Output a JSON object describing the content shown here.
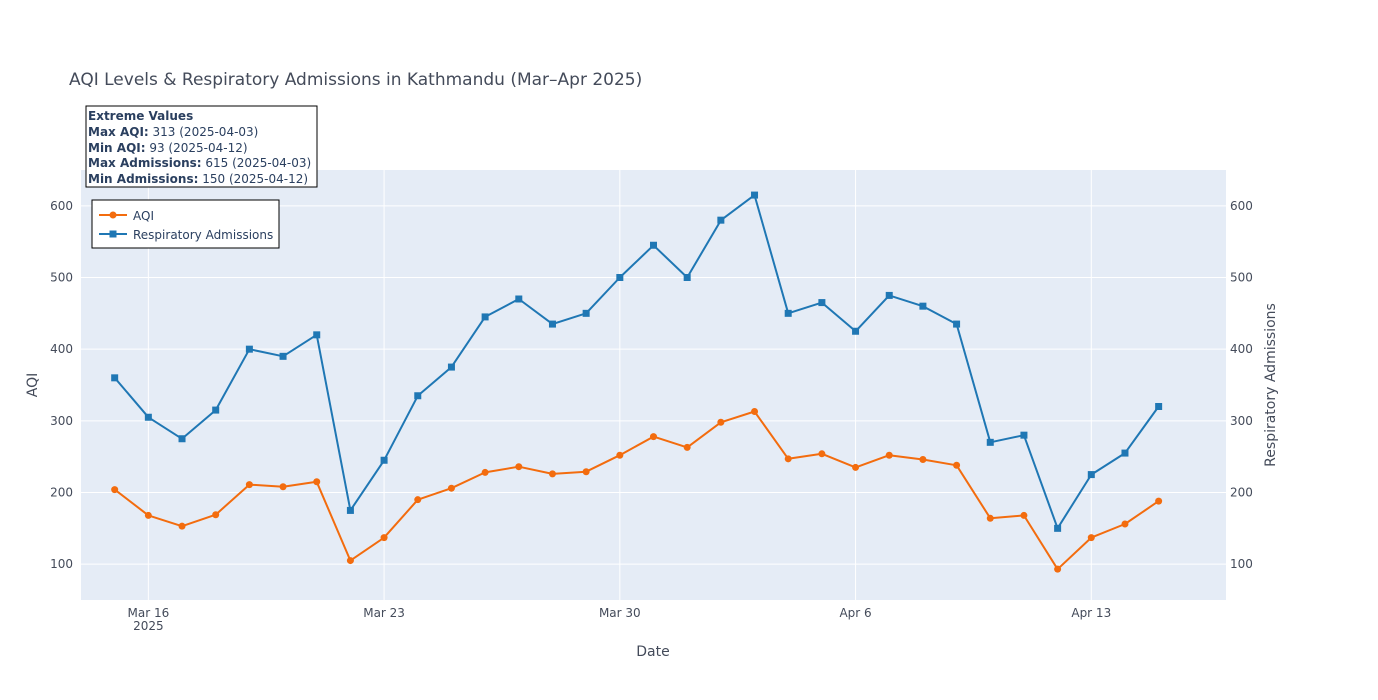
{
  "chart_data": {
    "type": "line",
    "title": "AQI Levels & Respiratory Admissions in Kathmandu (Mar–Apr 2025)",
    "xlabel": "Date",
    "ylabel": "AQI",
    "y2label": "Respiratory Admissions",
    "ylim": [
      50,
      650
    ],
    "y2lim": [
      50,
      650
    ],
    "yticks": [
      100,
      200,
      300,
      400,
      500,
      600
    ],
    "xrange": [
      "2025-03-14T00:00",
      "2025-04-17T00:00"
    ],
    "xticks": [
      {
        "date": "2025-03-16",
        "label": "Mar 16",
        "sublabel": "2025"
      },
      {
        "date": "2025-03-23",
        "label": "Mar 23",
        "sublabel": ""
      },
      {
        "date": "2025-03-30",
        "label": "Mar 30",
        "sublabel": ""
      },
      {
        "date": "2025-04-06",
        "label": "Apr 6",
        "sublabel": ""
      },
      {
        "date": "2025-04-13",
        "label": "Apr 13",
        "sublabel": ""
      }
    ],
    "grid": true,
    "legend_position": "top-left",
    "dates": [
      "2025-03-15",
      "2025-03-16",
      "2025-03-17",
      "2025-03-18",
      "2025-03-19",
      "2025-03-20",
      "2025-03-21",
      "2025-03-22",
      "2025-03-23",
      "2025-03-24",
      "2025-03-25",
      "2025-03-26",
      "2025-03-27",
      "2025-03-28",
      "2025-03-29",
      "2025-03-30",
      "2025-03-31",
      "2025-04-01",
      "2025-04-02",
      "2025-04-03",
      "2025-04-04",
      "2025-04-05",
      "2025-04-06",
      "2025-04-07",
      "2025-04-08",
      "2025-04-09",
      "2025-04-10",
      "2025-04-11",
      "2025-04-12",
      "2025-04-13",
      "2025-04-14",
      "2025-04-15"
    ],
    "series": [
      {
        "name": "AQI",
        "axis": "y",
        "color": "#f36c0e",
        "marker": "circle",
        "values": [
          204,
          168,
          153,
          169,
          211,
          208,
          215,
          105,
          137,
          190,
          206,
          228,
          236,
          226,
          229,
          252,
          278,
          263,
          298,
          313,
          247,
          254,
          235,
          252,
          246,
          238,
          164,
          168,
          93,
          137,
          156,
          188
        ]
      },
      {
        "name": "Respiratory Admissions",
        "axis": "y2",
        "color": "#1f77b4",
        "marker": "square",
        "values": [
          360,
          305,
          275,
          315,
          400,
          390,
          420,
          175,
          245,
          335,
          375,
          445,
          470,
          435,
          450,
          500,
          545,
          500,
          580,
          615,
          450,
          465,
          425,
          475,
          460,
          435,
          270,
          280,
          150,
          225,
          255,
          320
        ]
      }
    ],
    "annotation": {
      "heading": "Extreme Values",
      "lines": [
        {
          "label": "Max AQI:",
          "value": " 313 (2025-04-03)"
        },
        {
          "label": "Min AQI:",
          "value": " 93 (2025-04-12)"
        },
        {
          "label": "Max Admissions:",
          "value": " 615 (2025-04-03)"
        },
        {
          "label": "Min Admissions:",
          "value": " 150 (2025-04-12)"
        }
      ]
    }
  }
}
